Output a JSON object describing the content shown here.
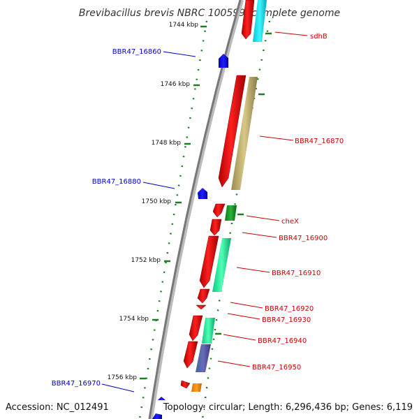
{
  "title": "Brevibacillus brevis NBRC 100599, complete genome",
  "footer": {
    "accession": "Accession: NC_012491",
    "topology": "Topology: circular; Length: 6,296,436 bp; Genes: 6,119"
  },
  "ticks": [
    "1744 kbp",
    "1746 kbp",
    "1748 kbp",
    "1750 kbp",
    "1752 kbp",
    "1754 kbp",
    "1756 kbp"
  ],
  "labels": {
    "sdhB": "sdhB",
    "BBR47_16860": "BBR47_16860",
    "BBR47_16870": "BBR47_16870",
    "BBR47_16880": "BBR47_16880",
    "cheX": "cheX",
    "BBR47_16900": "BBR47_16900",
    "BBR47_16910": "BBR47_16910",
    "BBR47_16920": "BBR47_16920",
    "BBR47_16930": "BBR47_16930",
    "BBR47_16940": "BBR47_16940",
    "BBR47_16950": "BBR47_16950",
    "BBR47_16970": "BBR47_16970"
  },
  "colors": {
    "forward_cds": "#ff0000",
    "reverse_cds": "#0000ff",
    "backbone": "#888888",
    "ticks": "#1e7d1e",
    "label_forward": "#cc0000",
    "label_reverse": "#0000cc"
  }
}
